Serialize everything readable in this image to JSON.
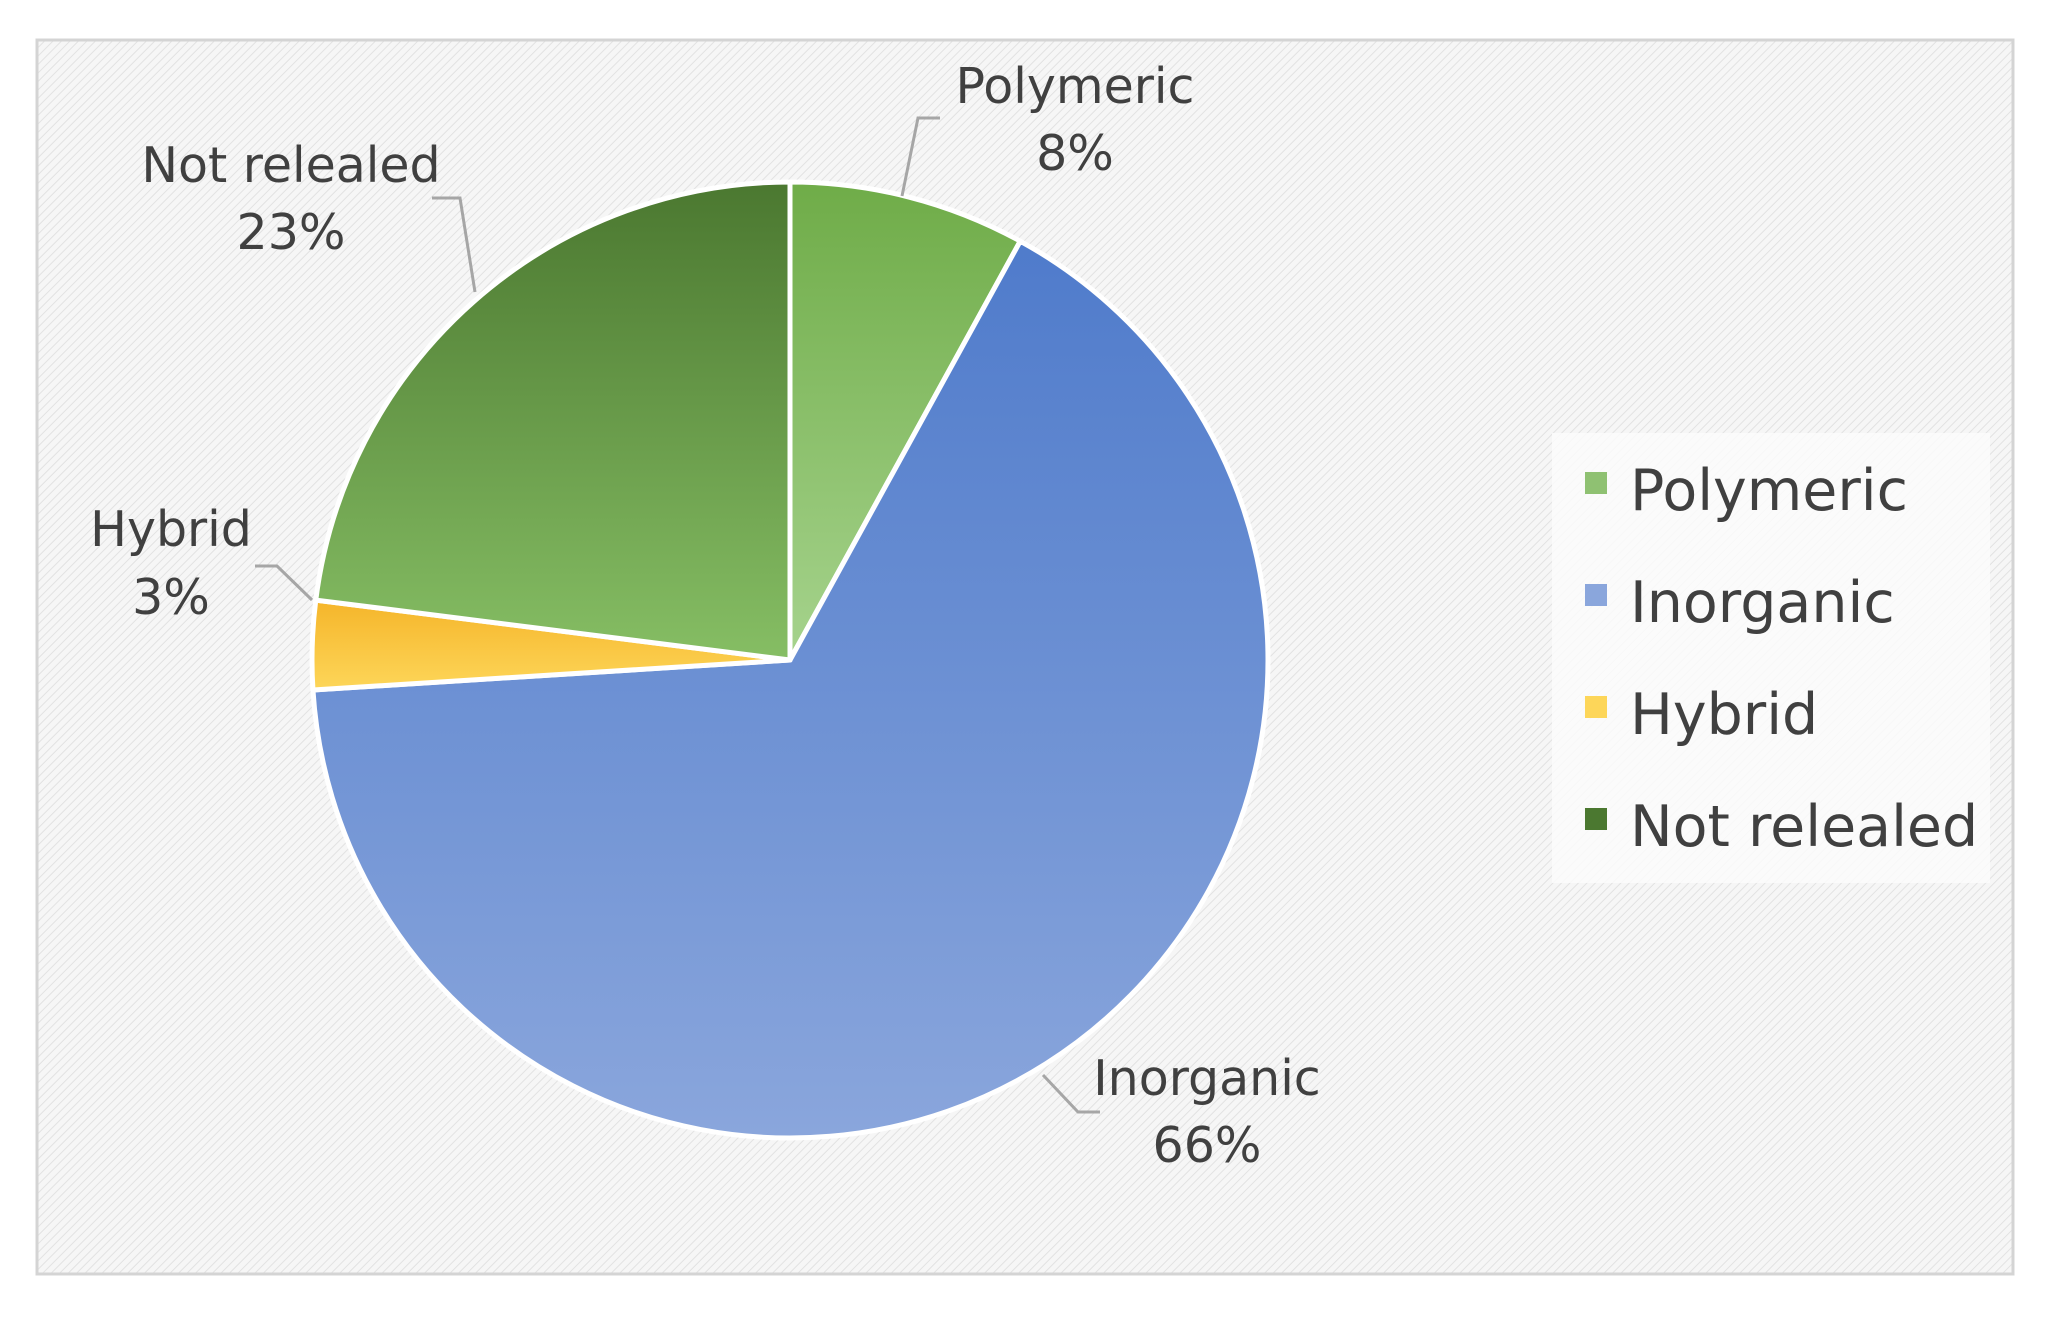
{
  "chart_data": {
    "type": "pie",
    "title": "",
    "slices": [
      {
        "label": "Polymeric",
        "value": 8,
        "display": "8%",
        "color": "#8fc172",
        "color_dark": "#6fac48",
        "label_side": "above"
      },
      {
        "label": "Inorganic",
        "value": 66,
        "display": "66%",
        "color": "#8aa6dc",
        "color_dark": "#4f7bcb",
        "label_side": "below"
      },
      {
        "label": "Hybrid",
        "value": 3,
        "display": "3%",
        "color": "#fdd659",
        "color_dark": "#f5b52a",
        "label_side": "left"
      },
      {
        "label": "Not relealed",
        "value": 23,
        "display": "23%",
        "color": "#86be64",
        "color_dark": "#4b7830",
        "label_side": "left"
      }
    ],
    "legend": {
      "position": "right",
      "items": [
        "Polymeric",
        "Inorganic",
        "Hybrid",
        "Not relealed"
      ]
    },
    "start_angle_deg": 0,
    "direction": "clockwise",
    "background": "hatched-light-gray"
  }
}
